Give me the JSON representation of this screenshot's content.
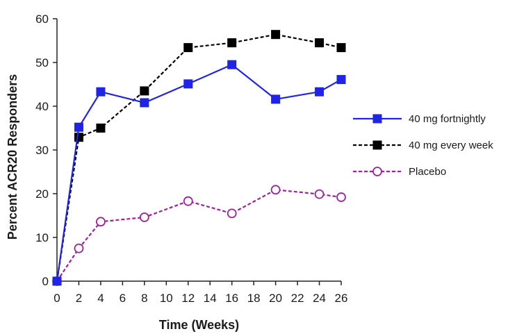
{
  "chart_data": {
    "type": "line",
    "title": "",
    "xlabel": "Time (Weeks)",
    "ylabel": "Percent ACR20 Responders",
    "xlim": [
      0,
      26
    ],
    "ylim": [
      0,
      60
    ],
    "x_ticks": [
      0,
      2,
      4,
      6,
      8,
      10,
      12,
      14,
      16,
      18,
      20,
      22,
      24,
      26
    ],
    "y_ticks": [
      0,
      10,
      20,
      30,
      40,
      50,
      60
    ],
    "x": [
      0,
      2,
      4,
      8,
      12,
      16,
      20,
      24,
      26
    ],
    "grid": false,
    "legend_position": "right",
    "series": [
      {
        "name": "40 mg fortnightly",
        "color": "#1f24e6",
        "marker": "filled-square",
        "line_style": "solid",
        "values": [
          0,
          35.2,
          43.3,
          40.8,
          45.1,
          49.5,
          41.6,
          43.3,
          46.1
        ]
      },
      {
        "name": "40 mg every week",
        "color": "#000000",
        "marker": "filled-square",
        "line_style": "dashed",
        "values": [
          0,
          32.9,
          35.0,
          43.5,
          53.4,
          54.5,
          56.4,
          54.5,
          53.4
        ]
      },
      {
        "name": "Placebo",
        "color": "#a020a0",
        "marker": "open-circle",
        "line_style": "dashed",
        "values": [
          0,
          7.5,
          13.6,
          14.6,
          18.3,
          15.5,
          20.9,
          19.9,
          19.2
        ]
      }
    ]
  }
}
